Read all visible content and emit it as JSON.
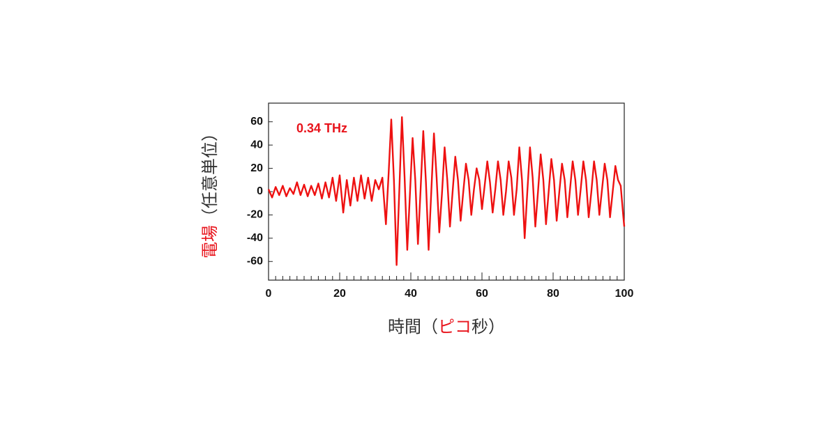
{
  "chart_data": {
    "type": "line",
    "annotation": "0.34 THz",
    "x_label": [
      "時間（",
      "ピコ",
      "秒）"
    ],
    "y_label": [
      "電場",
      "（任意単位）"
    ],
    "x": [
      0,
      1,
      2,
      3,
      4,
      5,
      6,
      7,
      8,
      9,
      10,
      11,
      12,
      13,
      14,
      15,
      16,
      17,
      18,
      19,
      20,
      21,
      22,
      23,
      24,
      25,
      26,
      27,
      28,
      29,
      30,
      31,
      32,
      33,
      33.75,
      34.5,
      35.25,
      36,
      36.75,
      37.5,
      38.25,
      39,
      39.75,
      40.5,
      41.25,
      42,
      42.75,
      43.5,
      44.25,
      45,
      45.75,
      46.5,
      47.25,
      48,
      48.75,
      49.5,
      50.25,
      51,
      51.75,
      52.5,
      53.25,
      54,
      54.75,
      55.5,
      56.25,
      57,
      57.75,
      58.5,
      59.25,
      60,
      60.75,
      61.5,
      62.25,
      63,
      63.75,
      64.5,
      65.25,
      66,
      66.75,
      67.5,
      68.25,
      69,
      69.75,
      70.5,
      71.25,
      72,
      72.75,
      73.5,
      74.25,
      75,
      75.75,
      76.5,
      77.25,
      78,
      78.75,
      79.5,
      80.25,
      81,
      81.75,
      82.5,
      83.25,
      84,
      84.75,
      85.5,
      86.25,
      87,
      87.75,
      88.5,
      89.25,
      90,
      90.75,
      91.5,
      92.25,
      93,
      93.75,
      94.5,
      95.25,
      96,
      96.75,
      97.5,
      98.25,
      99,
      99.75,
      100
    ],
    "series": [
      {
        "color": "#ee1111",
        "values": [
          2,
          -5,
          4,
          -3,
          5,
          -4,
          3,
          -2,
          8,
          -3,
          6,
          -4,
          5,
          -3,
          7,
          -6,
          8,
          -5,
          12,
          -8,
          14,
          -18,
          10,
          -12,
          12,
          -8,
          14,
          -6,
          12,
          -8,
          10,
          2,
          12,
          -28,
          15,
          62,
          10,
          -63,
          0,
          64,
          12,
          -50,
          -2,
          46,
          10,
          -45,
          2,
          52,
          8,
          -50,
          0,
          50,
          12,
          -35,
          -2,
          38,
          10,
          -30,
          0,
          30,
          10,
          -25,
          0,
          24,
          10,
          -20,
          2,
          20,
          10,
          -15,
          5,
          26,
          8,
          -18,
          2,
          26,
          10,
          -20,
          0,
          26,
          12,
          -20,
          2,
          38,
          10,
          -40,
          0,
          38,
          12,
          -30,
          0,
          32,
          10,
          -28,
          0,
          28,
          10,
          -25,
          0,
          24,
          10,
          -22,
          2,
          26,
          10,
          -20,
          2,
          26,
          10,
          -22,
          0,
          26,
          10,
          -20,
          2,
          24,
          10,
          -22,
          0,
          22,
          10,
          5,
          -22,
          -30
        ]
      }
    ],
    "xlim": [
      0,
      100
    ],
    "ylim": [
      -76,
      76
    ],
    "xticks": [
      0,
      20,
      40,
      60,
      80,
      100
    ],
    "xminorticks": [
      0,
      2,
      4,
      6,
      8,
      10,
      12,
      14,
      16,
      18,
      20,
      22,
      24,
      26,
      28,
      30,
      32,
      34,
      36,
      38,
      40,
      42,
      44,
      46,
      48,
      50,
      52,
      54,
      56,
      58,
      60,
      62,
      64,
      66,
      68,
      70,
      72,
      74,
      76,
      78,
      80,
      82,
      84,
      86,
      88,
      90,
      92,
      94,
      96,
      98,
      100
    ],
    "yticks": [
      -60,
      -40,
      -20,
      0,
      20,
      40,
      60
    ]
  }
}
